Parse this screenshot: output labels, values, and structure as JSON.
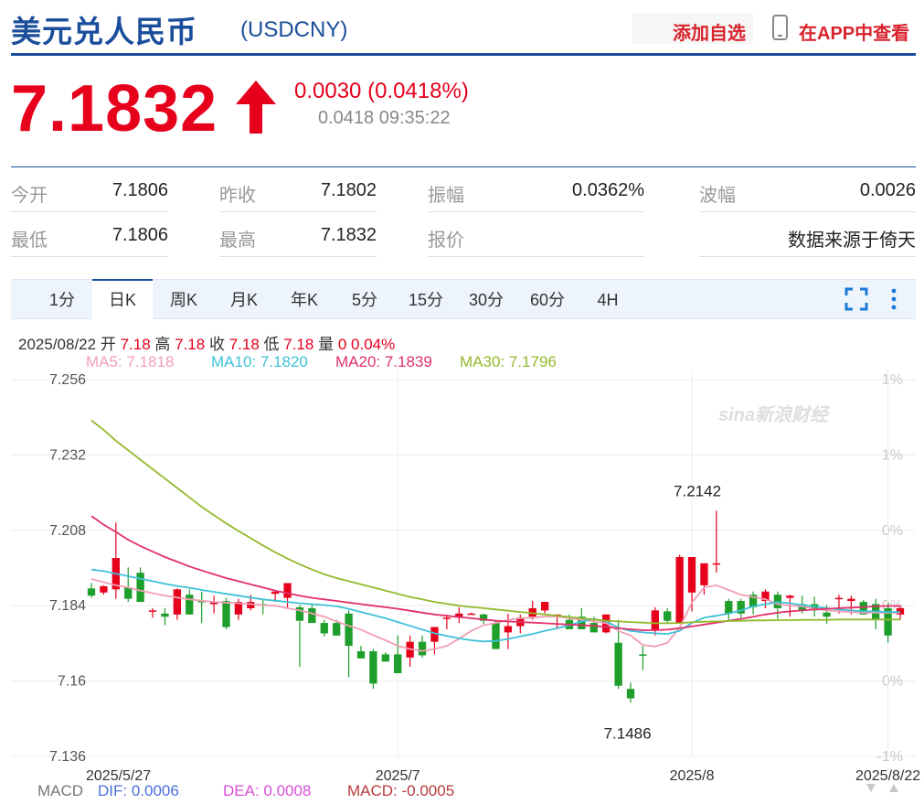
{
  "header": {
    "title": "美元兑人民币",
    "code": "(USDCNY)",
    "add_watchlist": "添加自选",
    "view_in_app": "在APP中查看"
  },
  "quote": {
    "price": "7.1832",
    "change": "0.0030 (0.0418%)",
    "sub": "0.0418 09:35:22"
  },
  "stats": [
    {
      "label": "今开",
      "value": "7.1806"
    },
    {
      "label": "昨收",
      "value": "7.1802"
    },
    {
      "label": "振幅",
      "value": "0.0362%"
    },
    {
      "label": "波幅",
      "value": "0.0026"
    },
    {
      "label": "最低",
      "value": "7.1806"
    },
    {
      "label": "最高",
      "value": "7.1832"
    },
    {
      "label": "报价",
      "value": ""
    },
    {
      "label": "",
      "value": "数据来源于倚天"
    }
  ],
  "tabs": [
    "1分",
    "日K",
    "周K",
    "月K",
    "年K",
    "5分",
    "15分",
    "30分",
    "60分",
    "4H"
  ],
  "active_tab": 1,
  "ohlc": {
    "date": "2025/08/22",
    "open_label": "开",
    "open": "7.18",
    "high_label": "高",
    "high": "7.18",
    "close_label": "收",
    "close": "7.18",
    "low_label": "低",
    "low": "7.18",
    "vol_label": "量",
    "vol": "0",
    "pct": "0.04%"
  },
  "ma": {
    "ma5": "MA5: 7.1818",
    "ma10": "MA10: 7.1820",
    "ma20": "MA20: 7.1839",
    "ma30": "MA30: 7.1796"
  },
  "macd": {
    "label": "MACD",
    "dif": "DIF: 0.0006",
    "dea": "DEA: 0.0008",
    "macd": "MACD: -0.0005"
  },
  "colors": {
    "up": "#e6001c",
    "down": "#1e9e2a",
    "ma5": "#f29fb4",
    "ma10": "#3ec1d8",
    "ma20": "#e2306a",
    "ma30": "#93b92b",
    "brand": "#1a4e9b"
  },
  "chart_data": {
    "type": "candlestick",
    "ylim": [
      7.136,
      7.256
    ],
    "y_ticks": [
      "7.256",
      "7.232",
      "7.208",
      "7.184",
      "7.16",
      "7.136"
    ],
    "right_ticks": [
      "1%",
      "1%",
      "0%",
      "0%",
      "0%",
      "-1%"
    ],
    "x_ticks": [
      {
        "label": "2025/5/27",
        "index": 0
      },
      {
        "label": "2025/7",
        "index": 25
      },
      {
        "label": "2025/8",
        "index": 49
      },
      {
        "label": "2025/8/22",
        "index": 65
      }
    ],
    "annotations": [
      {
        "label": "7.2142",
        "index": 49,
        "value": 7.2142
      },
      {
        "label": "7.1486",
        "index": 43,
        "value": 7.1486
      }
    ],
    "watermark": "sina新浪财经",
    "candles": [
      [
        7.1895,
        7.1912,
        7.1865,
        7.1872
      ],
      [
        7.1882,
        7.1905,
        7.1875,
        7.1902
      ],
      [
        7.1892,
        7.2105,
        7.1862,
        7.1992
      ],
      [
        7.1898,
        7.1962,
        7.1852,
        7.1862
      ],
      [
        7.1945,
        7.1962,
        7.1852,
        7.1852
      ],
      [
        7.1825,
        7.1832,
        7.1802,
        7.1825
      ],
      [
        7.1815,
        7.1832,
        7.1778,
        7.1805
      ],
      [
        7.1812,
        7.1895,
        7.1795,
        7.1892
      ],
      [
        7.1875,
        7.1892,
        7.1812,
        7.1812
      ],
      [
        7.1855,
        7.1885,
        7.1785,
        7.1852
      ],
      [
        7.1845,
        7.1872,
        7.1815,
        7.1852
      ],
      [
        7.1855,
        7.1865,
        7.1765,
        7.1772
      ],
      [
        7.1812,
        7.1862,
        7.1795,
        7.1852
      ],
      [
        7.1832,
        7.1875,
        7.1825,
        7.1852
      ],
      [
        7.1845,
        7.1862,
        7.1812,
        7.1842
      ],
      [
        7.1878,
        7.1885,
        7.1852,
        7.1885
      ],
      [
        7.1865,
        7.1912,
        7.1832,
        7.1912
      ],
      [
        7.1835,
        7.1842,
        7.1645,
        7.1792
      ],
      [
        7.1832,
        7.1845,
        7.1785,
        7.1785
      ],
      [
        7.1785,
        7.1795,
        7.1742,
        7.1752
      ],
      [
        7.1785,
        7.1795,
        7.1745,
        7.1745
      ],
      [
        7.1815,
        7.1825,
        7.1612,
        7.1712
      ],
      [
        7.1695,
        7.1712,
        7.1675,
        7.1672
      ],
      [
        7.1695,
        7.1702,
        7.1575,
        7.1592
      ],
      [
        7.1685,
        7.1692,
        7.1662,
        7.1662
      ],
      [
        7.1685,
        7.1745,
        7.1625,
        7.1625
      ],
      [
        7.1675,
        7.1745,
        7.1645,
        7.1725
      ],
      [
        7.1725,
        7.1745,
        7.1675,
        7.1682
      ],
      [
        7.1725,
        7.1772,
        7.1685,
        7.1772
      ],
      [
        7.1802,
        7.1812,
        7.1765,
        7.1802
      ],
      [
        7.1802,
        7.1835,
        7.1785,
        7.1815
      ],
      [
        7.1815,
        7.1818,
        7.1812,
        7.1815
      ],
      [
        7.1812,
        7.1815,
        7.1782,
        7.1792
      ],
      [
        7.1785,
        7.1795,
        7.1702,
        7.1702
      ],
      [
        7.1755,
        7.1815,
        7.1702,
        7.1775
      ],
      [
        7.1775,
        7.1812,
        7.1752,
        7.1802
      ],
      [
        7.1805,
        7.1855,
        7.1795,
        7.1832
      ],
      [
        7.1825,
        7.1852,
        7.1815,
        7.1852
      ],
      [
        7.1805,
        7.1812,
        7.1765,
        7.1812
      ],
      [
        7.1795,
        7.1812,
        7.1765,
        7.1765
      ],
      [
        7.1805,
        7.1832,
        7.1765,
        7.1765
      ],
      [
        7.1785,
        7.1805,
        7.1755,
        7.1755
      ],
      [
        7.1755,
        7.1812,
        7.1752,
        7.1812
      ],
      [
        7.1722,
        7.1795,
        7.1575,
        7.1585
      ],
      [
        7.1575,
        7.1595,
        7.1532,
        7.1545
      ],
      [
        7.1685,
        7.1712,
        7.1635,
        7.1682
      ],
      [
        7.1762,
        7.1835,
        7.1745,
        7.1825
      ],
      [
        7.1822,
        7.1832,
        7.1785,
        7.1792
      ],
      [
        7.1785,
        7.2002,
        7.1782,
        7.1995
      ],
      [
        7.1882,
        7.1985,
        7.1822,
        7.1995
      ],
      [
        7.1905,
        7.1975,
        7.1875,
        7.1975
      ],
      [
        7.1975,
        7.2142,
        7.1945,
        7.1975
      ],
      [
        7.1855,
        7.1862,
        7.1795,
        7.1815
      ],
      [
        7.1855,
        7.1862,
        7.1802,
        7.1815
      ],
      [
        7.1875,
        7.1885,
        7.1812,
        7.1835
      ],
      [
        7.1855,
        7.1892,
        7.1832,
        7.1885
      ],
      [
        7.1875,
        7.1885,
        7.1798,
        7.1832
      ],
      [
        7.1865,
        7.1875,
        7.1805,
        7.1872
      ],
      [
        7.1845,
        7.1872,
        7.1815,
        7.1825
      ],
      [
        7.1845,
        7.1868,
        7.1805,
        7.1825
      ],
      [
        7.1818,
        7.1842,
        7.1782,
        7.1805
      ],
      [
        7.1865,
        7.1875,
        7.1815,
        7.1865
      ],
      [
        7.1855,
        7.1872,
        7.1812,
        7.1862
      ],
      [
        7.1852,
        7.1858,
        7.1812,
        7.1812
      ],
      [
        7.1845,
        7.1862,
        7.1765,
        7.1795
      ],
      [
        7.1832,
        7.1848,
        7.1722,
        7.1745
      ],
      [
        7.1812,
        7.1838,
        7.1795,
        7.1832
      ]
    ],
    "series": [
      {
        "name": "MA5",
        "values": [
          7.1925,
          7.1915,
          7.1905,
          7.1898,
          7.1888,
          7.188,
          7.1872,
          7.1866,
          7.186,
          7.1856,
          7.1852,
          7.185,
          7.1848,
          7.1845,
          7.1842,
          7.184,
          7.1832,
          7.1825,
          7.1815,
          7.1805,
          7.179,
          7.1776,
          7.1764,
          7.1746,
          7.173,
          7.1712,
          7.1702,
          7.1696,
          7.1702,
          7.1712,
          7.1735,
          7.176,
          7.1778,
          7.1785,
          7.1795,
          7.18,
          7.1802,
          7.1805,
          7.1806,
          7.18,
          7.1795,
          7.179,
          7.1784,
          7.176,
          7.1745,
          7.1715,
          7.171,
          7.1722,
          7.177,
          7.185,
          7.1898,
          7.1905,
          7.189,
          7.1875,
          7.1868,
          7.186,
          7.1845,
          7.184,
          7.1838,
          7.183,
          7.1825,
          7.1822,
          7.182,
          7.1818,
          7.1818,
          7.1818,
          7.1818
        ]
      },
      {
        "name": "MA10",
        "values": [
          7.1955,
          7.195,
          7.1942,
          7.1934,
          7.1926,
          7.1918,
          7.191,
          7.1903,
          7.1897,
          7.189,
          7.1884,
          7.1878,
          7.1872,
          7.1866,
          7.186,
          7.1856,
          7.1852,
          7.1848,
          7.1845,
          7.1842,
          7.1838,
          7.183,
          7.182,
          7.181,
          7.18,
          7.1788,
          7.1776,
          7.1764,
          7.1752,
          7.1744,
          7.1736,
          7.173,
          7.1726,
          7.1728,
          7.1734,
          7.1742,
          7.175,
          7.176,
          7.1768,
          7.1778,
          7.179,
          7.1798,
          7.179,
          7.177,
          7.176,
          7.1755,
          7.1752,
          7.175,
          7.176,
          7.1785,
          7.1802,
          7.1808,
          7.1815,
          7.1825,
          7.1838,
          7.1845,
          7.1852,
          7.1848,
          7.1842,
          7.1838,
          7.1832,
          7.1828,
          7.1825,
          7.1822,
          7.1822,
          7.182,
          7.182
        ]
      },
      {
        "name": "MA20",
        "values": [
          7.2125,
          7.2098,
          7.2075,
          7.205,
          7.203,
          7.2012,
          7.1995,
          7.198,
          7.1965,
          7.1952,
          7.194,
          7.1928,
          7.1918,
          7.1908,
          7.1898,
          7.1888,
          7.188,
          7.1872,
          7.1865,
          7.186,
          7.1855,
          7.185,
          7.1845,
          7.184,
          7.1835,
          7.183,
          7.1824,
          7.1818,
          7.1812,
          7.1808,
          7.1804,
          7.18,
          7.1796,
          7.1792,
          7.179,
          7.1788,
          7.1786,
          7.1784,
          7.1782,
          7.178,
          7.1778,
          7.1776,
          7.1772,
          7.1768,
          7.1765,
          7.1762,
          7.1762,
          7.1764,
          7.1768,
          7.1774,
          7.178,
          7.1786,
          7.1792,
          7.1798,
          7.1805,
          7.1812,
          7.1818,
          7.1822,
          7.1825,
          7.1828,
          7.183,
          7.1832,
          7.1834,
          7.1836,
          7.1838,
          7.1839,
          7.1839
        ]
      },
      {
        "name": "MA30",
        "values": [
          7.243,
          7.24,
          7.2365,
          7.2335,
          7.2305,
          7.2275,
          7.2245,
          7.2215,
          7.2185,
          7.2155,
          7.2128,
          7.2102,
          7.2078,
          7.2055,
          7.2032,
          7.201,
          7.199,
          7.1972,
          7.1955,
          7.194,
          7.1928,
          7.1918,
          7.1908,
          7.1898,
          7.1888,
          7.1878,
          7.1868,
          7.186,
          7.1852,
          7.1846,
          7.184,
          7.1836,
          7.1832,
          7.1828,
          7.1824,
          7.182,
          7.1816,
          7.1812,
          7.1808,
          7.1804,
          7.18,
          7.1796,
          7.1792,
          7.179,
          7.1788,
          7.1786,
          7.1784,
          7.1784,
          7.1785,
          7.1787,
          7.1789,
          7.179,
          7.1791,
          7.1792,
          7.1793,
          7.1793,
          7.1794,
          7.1794,
          7.1795,
          7.1795,
          7.1795,
          7.1796,
          7.1796,
          7.1796,
          7.1796,
          7.1796,
          7.1796
        ]
      }
    ]
  }
}
